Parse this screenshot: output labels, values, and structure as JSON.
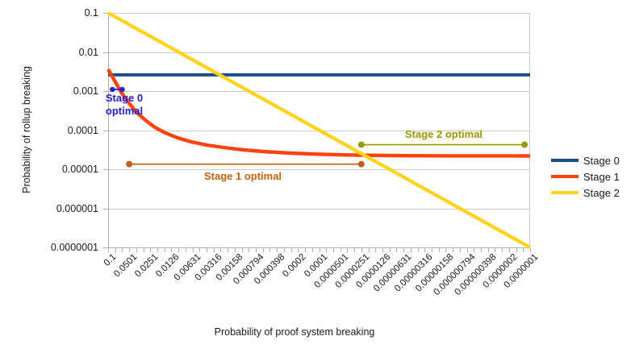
{
  "chart_data": {
    "type": "line",
    "title": "",
    "xlabel": "Probability of proof system breaking",
    "ylabel": "Probability of rollup breaking",
    "x_scale": "log-reversed",
    "y_scale": "log",
    "xlim": [
      0.1,
      1e-07
    ],
    "ylim": [
      0.1,
      1e-07
    ],
    "grid": "horizontal-only",
    "legend_position": "right",
    "x_ticks": [
      "0.1",
      "0.0501",
      "0.0251",
      "0.0126",
      "0.00631",
      "0.00316",
      "0.00158",
      "0.000794",
      "0.000398",
      "0.0002",
      "0.0001",
      "0.0000501",
      "0.0000251",
      "0.0000126",
      "0.00000631",
      "0.00000316",
      "0.00000158",
      "0.000000794",
      "0.000000398",
      "0.0000002",
      "0.0000001"
    ],
    "y_ticks": [
      "0.1",
      "0.01",
      "0.001",
      "0.0001",
      "0.00001",
      "0.000001",
      "0.0000001"
    ],
    "series": [
      {
        "name": "Stage 0",
        "color": "#1a4e8a",
        "stroke_width": 4,
        "points": [
          [
            0.1,
            0.0026
          ],
          [
            1e-07,
            0.0026
          ]
        ]
      },
      {
        "name": "Stage 1",
        "color": "#ff420e",
        "stroke_width": 4.4,
        "points": [
          [
            0.1,
            0.0036
          ],
          [
            0.081,
            0.00185
          ],
          [
            0.0655,
            0.00095
          ],
          [
            0.0517,
            0.000514
          ],
          [
            0.0397,
            0.00029
          ],
          [
            0.0297,
            0.000181
          ],
          [
            0.0216,
            0.000118
          ],
          [
            0.0153,
            8.47e-05
          ],
          [
            0.0103,
            6.37e-05
          ],
          [
            0.00658,
            5.02e-05
          ],
          [
            0.00399,
            4.16e-05
          ],
          [
            0.00229,
            3.61e-05
          ],
          [
            0.00125,
            3.16e-05
          ],
          [
            0.000627,
            2.84e-05
          ],
          [
            0.000284,
            2.61e-05
          ],
          [
            0.000116,
            2.44e-05
          ],
          [
            4.02e-05,
            2.32e-05
          ],
          [
            1.07e-05,
            2.24e-05
          ],
          [
            1.3e-06,
            2.2e-05
          ],
          [
            1e-07,
            2.19e-05
          ]
        ]
      },
      {
        "name": "Stage 2",
        "color": "#ffd320",
        "stroke_width": 4.4,
        "points": [
          [
            0.1,
            0.1
          ],
          [
            1e-07,
            1e-07
          ]
        ]
      }
    ],
    "annotations": [
      {
        "id": "stage0-optimal",
        "label": "Stage 0\noptimal",
        "color": "#2222cc",
        "x_start": 0.087,
        "x_end": 0.063,
        "y": 0.0011
      },
      {
        "id": "stage1-optimal",
        "label": "Stage 1 optimal",
        "color": "#c2610d",
        "x_start": 0.0501,
        "x_end": 2.51e-05,
        "y": 1.35e-05
      },
      {
        "id": "stage2-optimal",
        "label": "Stage 2 optimal",
        "color": "#999900",
        "x_start": 2.51e-05,
        "x_end": 1.2e-07,
        "y": 4.25e-05
      }
    ]
  }
}
